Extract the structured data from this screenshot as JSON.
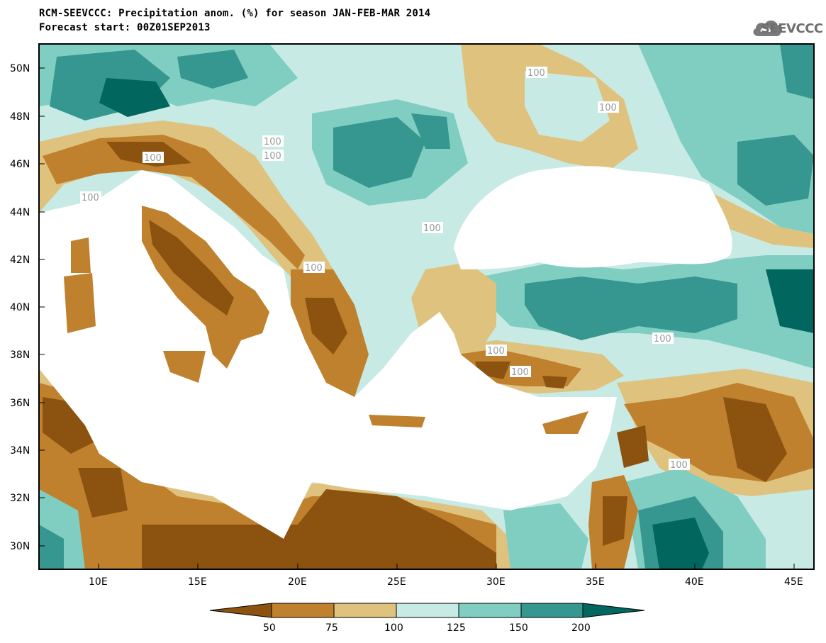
{
  "header": {
    "title_line1": "RCM-SEEVCCC: Precipitation anom. (%) for season JAN-FEB-MAR 2014",
    "title_line2": "Forecast start: 00Z01SEP2013",
    "logo_text": "SEEVCCC"
  },
  "map": {
    "lat_labels": [
      "50N",
      "48N",
      "46N",
      "44N",
      "42N",
      "40N",
      "38N",
      "36N",
      "34N",
      "32N",
      "30N"
    ],
    "lon_labels": [
      "10E",
      "15E",
      "20E",
      "25E",
      "30E",
      "35E",
      "40E",
      "45E"
    ],
    "contour_label": "100",
    "colors": {
      "below_50": "#8c5210",
      "50_75": "#bf812d",
      "75_100": "#dfc27d",
      "100_125": "#c7eae5",
      "125_150": "#80cdc1",
      "150_200": "#35978f",
      "above_200": "#01665e",
      "sea": "#ffffff"
    }
  },
  "colorbar": {
    "labels": [
      "50",
      "75",
      "100",
      "125",
      "150",
      "200"
    ],
    "colors": [
      "#8c5210",
      "#bf812d",
      "#dfc27d",
      "#c7eae5",
      "#80cdc1",
      "#35978f",
      "#01665e"
    ]
  }
}
